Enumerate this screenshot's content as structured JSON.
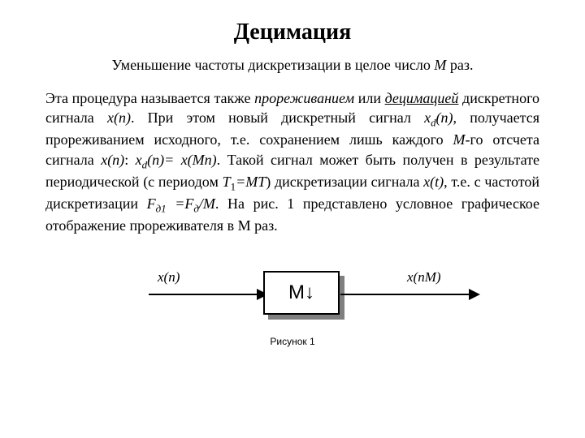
{
  "title": "Децимация",
  "subtitle_pre": "Уменьшение частоты дискретизации в целое число ",
  "subtitle_m": "М",
  "subtitle_post": " раз.",
  "para": {
    "t1": "Эта процедура называется также ",
    "t2": "прореживанием",
    "t3": " или ",
    "t4": "децимацией",
    "t5": " дискретного сигнала ",
    "t6": "x(n)",
    "t7": ". При этом новый дискретный сигнал ",
    "t8": "x",
    "t8sub": "d",
    "t8b": "(n)",
    "t9": ", получается прореживанием исходного, т.е. сохранением лишь каждого ",
    "t10": "М",
    "t11": "-го отсчета сигнала ",
    "t12": "x(n)",
    "t13": ": ",
    "t14": "x",
    "t14sub": "d",
    "t14b": "(n)= x(Mn)",
    "t15": ". Такой сигнал может быть получен в результате периодической (с периодом ",
    "t16": "T",
    "t16sub": "1",
    "t16b": "=MT",
    "t17": ") дискретизации сигнала ",
    "t18": "x(t)",
    "t19": ", т.е. с частотой дискретизации ",
    "t20": "F",
    "t20sub": "д1",
    "t20b": " =F",
    "t20sub2": "д",
    "t20c": "/M",
    "t21": ". На рис. 1 представлено условное графическое отображение прореживателя в М раз."
  },
  "diagram": {
    "input_label": "x(n)",
    "output_label": "x(nM)",
    "box_label": "M",
    "box_arrow": "↓",
    "caption": "Рисунок 1",
    "colors": {
      "line": "#000000",
      "box_fill": "#ffffff",
      "box_border": "#000000",
      "shadow": "#7f7f7f",
      "bg": "#ffffff"
    }
  }
}
